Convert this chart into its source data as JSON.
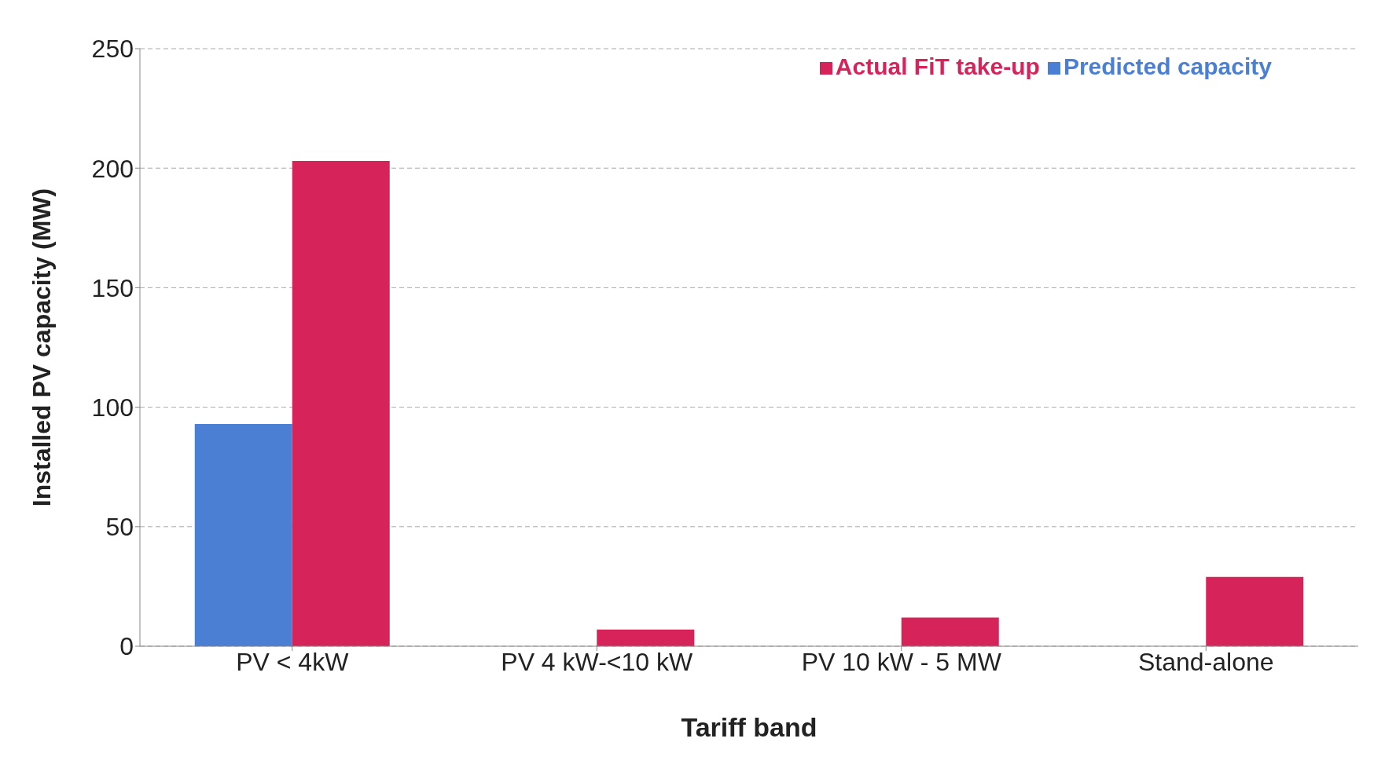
{
  "chart_data": {
    "type": "bar",
    "xlabel": "Tariff band",
    "ylabel": "Installed PV capacity (MW)",
    "categories": [
      "PV < 4kW",
      "PV 4 kW-<10 kW",
      "PV 10 kW - 5 MW",
      "Stand-alone"
    ],
    "series": [
      {
        "name": "Predicted capacity",
        "color": "#4a7fd4",
        "values": [
          93,
          null,
          null,
          null
        ]
      },
      {
        "name": "Actual FiT take-up",
        "color": "#d6245a",
        "values": [
          203,
          7,
          12,
          29
        ]
      }
    ],
    "ylim": [
      0,
      250
    ],
    "yticks": [
      0,
      50,
      100,
      150,
      200,
      250
    ],
    "grid": "y",
    "legend": "top right"
  }
}
